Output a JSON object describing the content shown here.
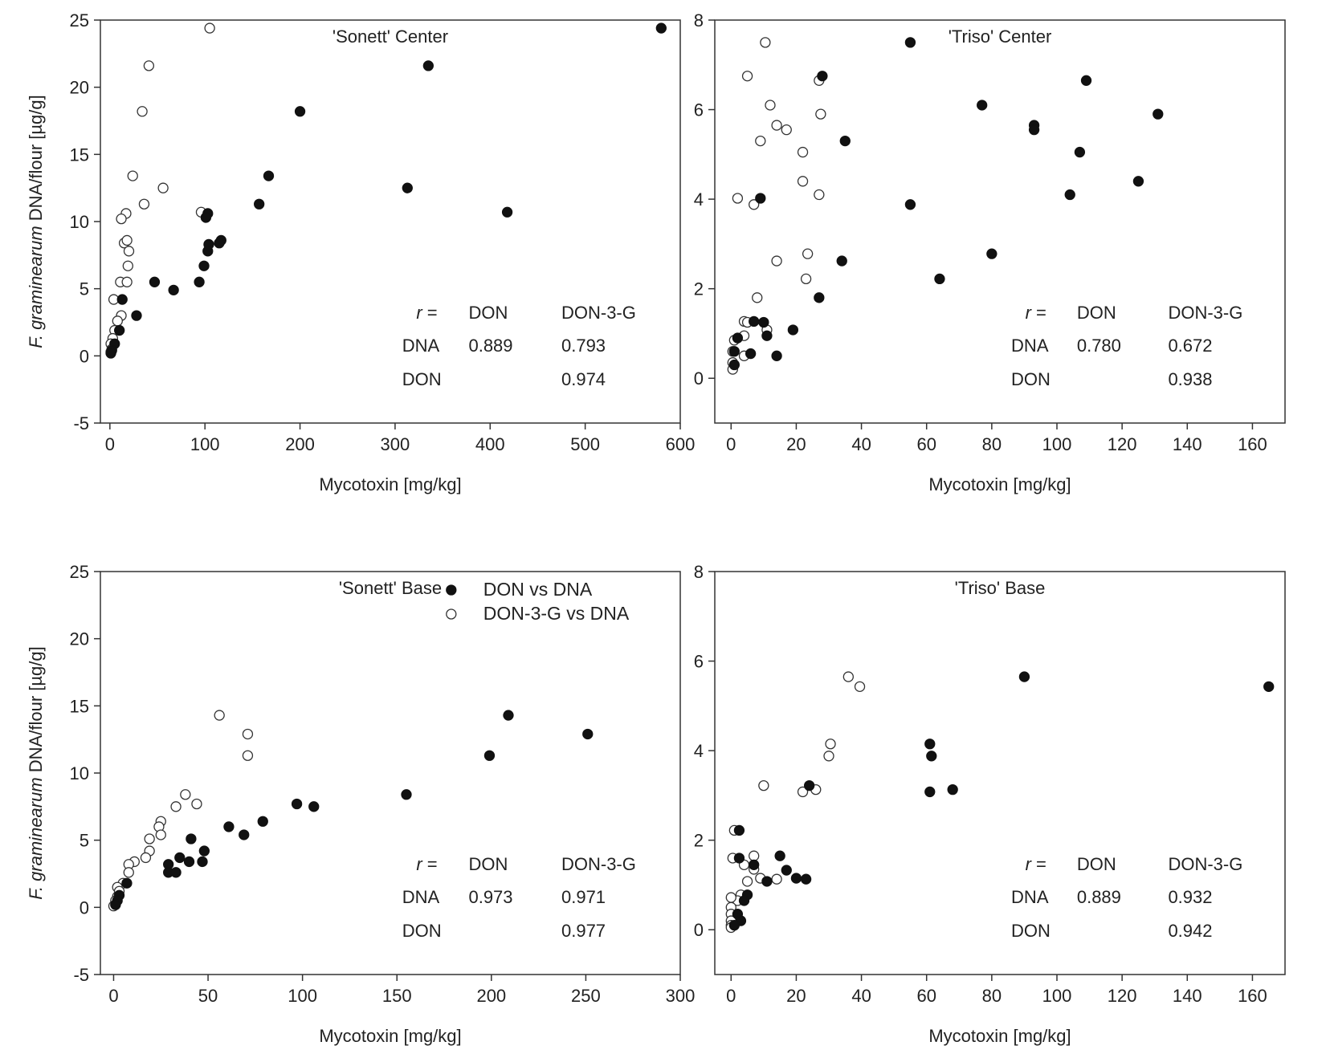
{
  "figure": {
    "colors": {
      "filled": "#111111",
      "open": "#ffffff",
      "stroke": "#333333"
    }
  },
  "legend": {
    "filled_label": "DON vs DNA",
    "open_label": "DON-3-G vs DNA"
  },
  "chart_data": [
    {
      "type": "scatter",
      "title": "'Sonett' Center",
      "xlabel": "Mycotoxin [mg/kg]",
      "ylabel_italic": "F. graminearum",
      "ylabel_rest": " DNA/flour [µg/g]",
      "xlim": [
        -10,
        600
      ],
      "ylim": [
        -5,
        25
      ],
      "xticks": [
        0,
        100,
        200,
        300,
        400,
        500,
        600
      ],
      "yticks": [
        -5,
        0,
        5,
        10,
        15,
        20,
        25
      ],
      "series": [
        {
          "name": "DON vs DNA",
          "marker": "filled",
          "points": [
            [
              580,
              24.4
            ],
            [
              335,
              21.6
            ],
            [
              200,
              18.2
            ],
            [
              167,
              13.4
            ],
            [
              313,
              12.5
            ],
            [
              157,
              11.3
            ],
            [
              418,
              10.7
            ],
            [
              103,
              10.6
            ],
            [
              101,
              10.3
            ],
            [
              104,
              8.3
            ],
            [
              117,
              8.6
            ],
            [
              115,
              8.4
            ],
            [
              103,
              7.8
            ],
            [
              99,
              6.7
            ],
            [
              94,
              5.5
            ],
            [
              47,
              5.5
            ],
            [
              67,
              4.9
            ],
            [
              13,
              4.2
            ],
            [
              28,
              3.0
            ],
            [
              10,
              1.9
            ],
            [
              5,
              0.9
            ],
            [
              2,
              0.4
            ],
            [
              1,
              0.2
            ]
          ]
        },
        {
          "name": "DON-3-G vs DNA",
          "marker": "open",
          "points": [
            [
              105,
              24.4
            ],
            [
              41,
              21.6
            ],
            [
              34,
              18.2
            ],
            [
              24,
              13.4
            ],
            [
              56,
              12.5
            ],
            [
              36,
              11.3
            ],
            [
              17,
              10.6
            ],
            [
              96,
              10.7
            ],
            [
              12,
              10.2
            ],
            [
              15,
              8.4
            ],
            [
              18,
              8.6
            ],
            [
              20,
              7.8
            ],
            [
              19,
              6.7
            ],
            [
              11,
              5.5
            ],
            [
              18,
              5.5
            ],
            [
              4,
              4.2
            ],
            [
              12,
              3.0
            ],
            [
              8,
              2.6
            ],
            [
              5,
              1.9
            ],
            [
              3,
              1.3
            ],
            [
              1,
              0.9
            ],
            [
              2,
              0.5
            ],
            [
              1,
              0.3
            ]
          ]
        }
      ],
      "r_table": {
        "r_label": "r",
        "r_eq": " =",
        "col1": "DON",
        "col2": "DON-3-G",
        "row1": "DNA",
        "row2": "DON",
        "dna_don": "0.889",
        "dna_don3g": "0.793",
        "don_don3g": "0.974"
      }
    },
    {
      "type": "scatter",
      "title": "'Triso' Center",
      "xlabel": "Mycotoxin [mg/kg]",
      "xlim": [
        -5,
        170
      ],
      "ylim": [
        -1,
        8
      ],
      "xticks": [
        0,
        20,
        40,
        60,
        80,
        100,
        120,
        140,
        160
      ],
      "yticks": [
        0,
        2,
        4,
        6,
        8
      ],
      "series": [
        {
          "name": "DON vs DNA",
          "marker": "filled",
          "points": [
            [
              55,
              7.5
            ],
            [
              28,
              6.75
            ],
            [
              109,
              6.65
            ],
            [
              77,
              6.1
            ],
            [
              93,
              5.65
            ],
            [
              93,
              5.55
            ],
            [
              131,
              5.9
            ],
            [
              35,
              5.3
            ],
            [
              107,
              5.05
            ],
            [
              125,
              4.4
            ],
            [
              104,
              4.1
            ],
            [
              9,
              4.02
            ],
            [
              55,
              3.88
            ],
            [
              80,
              2.78
            ],
            [
              34,
              2.62
            ],
            [
              64,
              2.22
            ],
            [
              27,
              1.8
            ],
            [
              7,
              1.27
            ],
            [
              10,
              1.25
            ],
            [
              19,
              1.08
            ],
            [
              11,
              0.95
            ],
            [
              6,
              0.55
            ],
            [
              14,
              0.5
            ],
            [
              2,
              0.9
            ],
            [
              1,
              0.6
            ],
            [
              1,
              0.3
            ]
          ]
        },
        {
          "name": "DON-3-G vs DNA",
          "marker": "open",
          "points": [
            [
              10.5,
              7.5
            ],
            [
              5,
              6.75
            ],
            [
              27,
              6.65
            ],
            [
              12,
              6.1
            ],
            [
              14,
              5.65
            ],
            [
              17,
              5.55
            ],
            [
              27.5,
              5.9
            ],
            [
              9,
              5.3
            ],
            [
              22,
              5.05
            ],
            [
              22,
              4.4
            ],
            [
              27,
              4.1
            ],
            [
              2,
              4.02
            ],
            [
              7,
              3.88
            ],
            [
              23.5,
              2.78
            ],
            [
              14,
              2.62
            ],
            [
              23,
              2.22
            ],
            [
              8,
              1.8
            ],
            [
              4,
              1.27
            ],
            [
              5,
              1.25
            ],
            [
              11,
              1.08
            ],
            [
              4,
              0.95
            ],
            [
              4,
              0.5
            ],
            [
              1,
              0.85
            ],
            [
              0.5,
              0.6
            ],
            [
              0.5,
              0.35
            ],
            [
              0.5,
              0.2
            ]
          ]
        }
      ],
      "r_table": {
        "r_label": "r",
        "r_eq": " =",
        "col1": "DON",
        "col2": "DON-3-G",
        "row1": "DNA",
        "row2": "DON",
        "dna_don": "0.780",
        "dna_don3g": "0.672",
        "don_don3g": "0.938"
      }
    },
    {
      "type": "scatter",
      "title": "'Sonett' Base",
      "xlabel": "Mycotoxin [mg/kg]",
      "ylabel_italic": "F. graminearum",
      "ylabel_rest": " DNA/flour [µg/g]",
      "xlim": [
        -7,
        300
      ],
      "ylim": [
        -5,
        25
      ],
      "xticks": [
        0,
        50,
        100,
        150,
        200,
        250,
        300
      ],
      "yticks": [
        -5,
        0,
        5,
        10,
        15,
        20,
        25
      ],
      "series": [
        {
          "name": "DON vs DNA",
          "marker": "filled",
          "points": [
            [
              209,
              14.3
            ],
            [
              251,
              12.9
            ],
            [
              199,
              11.3
            ],
            [
              155,
              8.4
            ],
            [
              97,
              7.7
            ],
            [
              106,
              7.5
            ],
            [
              79,
              6.4
            ],
            [
              61,
              6.0
            ],
            [
              69,
              5.4
            ],
            [
              41,
              5.1
            ],
            [
              48,
              4.2
            ],
            [
              35,
              3.7
            ],
            [
              40,
              3.4
            ],
            [
              47,
              3.4
            ],
            [
              29,
              3.2
            ],
            [
              29,
              2.6
            ],
            [
              33,
              2.6
            ],
            [
              7,
              1.8
            ],
            [
              3,
              0.9
            ],
            [
              2,
              0.5
            ],
            [
              1,
              0.2
            ]
          ]
        },
        {
          "name": "DON-3-G vs DNA",
          "marker": "open",
          "points": [
            [
              56,
              14.3
            ],
            [
              71,
              12.9
            ],
            [
              71,
              11.3
            ],
            [
              38,
              8.4
            ],
            [
              44,
              7.7
            ],
            [
              33,
              7.5
            ],
            [
              25,
              6.4
            ],
            [
              24,
              6.0
            ],
            [
              25,
              5.4
            ],
            [
              19,
              5.1
            ],
            [
              19,
              4.2
            ],
            [
              17,
              3.7
            ],
            [
              11,
              3.4
            ],
            [
              8,
              3.2
            ],
            [
              8,
              2.6
            ],
            [
              5,
              1.8
            ],
            [
              2,
              1.5
            ],
            [
              3,
              1.2
            ],
            [
              2,
              0.8
            ],
            [
              1,
              0.5
            ],
            [
              1,
              0.2
            ],
            [
              0,
              0.1
            ]
          ]
        }
      ],
      "r_table": {
        "r_label": "r",
        "r_eq": " =",
        "col1": "DON",
        "col2": "DON-3-G",
        "row1": "DNA",
        "row2": "DON",
        "dna_don": "0.973",
        "dna_don3g": "0.971",
        "don_don3g": "0.977"
      }
    },
    {
      "type": "scatter",
      "title": "'Triso' Base",
      "xlabel": "Mycotoxin [mg/kg]",
      "xlim": [
        -5,
        170
      ],
      "ylim": [
        -1,
        8
      ],
      "xticks": [
        0,
        20,
        40,
        60,
        80,
        100,
        120,
        140,
        160
      ],
      "yticks": [
        0,
        2,
        4,
        6,
        8
      ],
      "series": [
        {
          "name": "DON vs DNA",
          "marker": "filled",
          "points": [
            [
              165,
              5.43
            ],
            [
              90,
              5.65
            ],
            [
              61,
              4.15
            ],
            [
              61.5,
              3.88
            ],
            [
              68,
              3.13
            ],
            [
              61,
              3.08
            ],
            [
              24,
              3.22
            ],
            [
              15,
              1.65
            ],
            [
              2.5,
              2.22
            ],
            [
              2.5,
              1.6
            ],
            [
              17,
              1.33
            ],
            [
              20,
              1.15
            ],
            [
              23,
              1.13
            ],
            [
              11,
              1.08
            ],
            [
              7,
              1.45
            ],
            [
              5,
              0.78
            ],
            [
              4,
              0.65
            ],
            [
              2,
              0.35
            ],
            [
              3,
              0.2
            ],
            [
              1,
              0.1
            ]
          ]
        },
        {
          "name": "DON-3-G vs DNA",
          "marker": "open",
          "points": [
            [
              36,
              5.65
            ],
            [
              39.5,
              5.43
            ],
            [
              30.5,
              4.15
            ],
            [
              30,
              3.88
            ],
            [
              10,
              3.22
            ],
            [
              22,
              3.08
            ],
            [
              26,
              3.13
            ],
            [
              1,
              2.22
            ],
            [
              0.5,
              1.6
            ],
            [
              7,
              1.65
            ],
            [
              4,
              1.45
            ],
            [
              7,
              1.35
            ],
            [
              9,
              1.15
            ],
            [
              14,
              1.13
            ],
            [
              5,
              1.08
            ],
            [
              3,
              0.78
            ],
            [
              2,
              0.65
            ],
            [
              0,
              0.72
            ],
            [
              0,
              0.5
            ],
            [
              0,
              0.35
            ],
            [
              0,
              0.2
            ],
            [
              0,
              0.1
            ],
            [
              0,
              0.05
            ]
          ]
        }
      ],
      "r_table": {
        "r_label": "r",
        "r_eq": " =",
        "col1": "DON",
        "col2": "DON-3-G",
        "row1": "DNA",
        "row2": "DON",
        "dna_don": "0.889",
        "dna_don3g": "0.932",
        "don_don3g": "0.942"
      }
    }
  ]
}
